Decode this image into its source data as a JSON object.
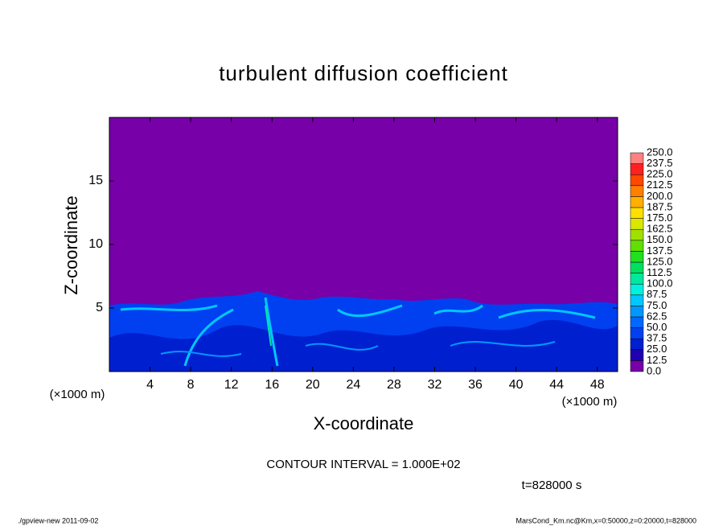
{
  "chart_data": {
    "type": "contour",
    "title": "turbulent diffusion coefficient",
    "xlabel": "X-coordinate",
    "ylabel": "Z-coordinate",
    "xunit": "(×1000 m)",
    "xlim": [
      0,
      50
    ],
    "ylim": [
      0,
      20
    ],
    "xticks": [
      4,
      8,
      12,
      16,
      20,
      24,
      28,
      32,
      36,
      40,
      44,
      48
    ],
    "yticks": [
      5,
      10,
      15
    ],
    "colorbar": {
      "levels": [
        {
          "value": 0,
          "label": "0.0"
        },
        12.5,
        {
          "value": 25,
          "label": "25.0"
        },
        37.5,
        {
          "value": 50,
          "label": "50.0"
        },
        62.5,
        {
          "value": 75,
          "label": "75.0"
        },
        87.5,
        {
          "value": 100,
          "label": "100.0"
        },
        112.5,
        {
          "value": 125,
          "label": "125.0"
        },
        137.5,
        {
          "value": 150,
          "label": "150.0"
        },
        162.5,
        {
          "value": 175,
          "label": "175.0"
        },
        187.5,
        {
          "value": 200,
          "label": "200.0"
        },
        212.5,
        {
          "value": 225,
          "label": "225.0"
        },
        237.5,
        {
          "value": 250,
          "label": "250.0"
        }
      ],
      "colors": [
        "#7700a8",
        "#2000b0",
        "#0020d0",
        "#0040f0",
        "#0068ff",
        "#0098ff",
        "#00c8ff",
        "#00f0e0",
        "#00e8a0",
        "#00e060",
        "#20e020",
        "#60e000",
        "#a0e000",
        "#d8e800",
        "#ffe000",
        "#ffb000",
        "#ff8000",
        "#ff4800",
        "#ff2020",
        "#ff8080"
      ]
    },
    "annotations": [
      "CONTOUR INTERVAL = 1.000E+02",
      "t=828000 s"
    ],
    "footer_left": "./gpview-new   2011-09-02",
    "footer_right": "MarsCond_Km.nc@Km,x=0:50000,z=0:20000,t=828000"
  }
}
